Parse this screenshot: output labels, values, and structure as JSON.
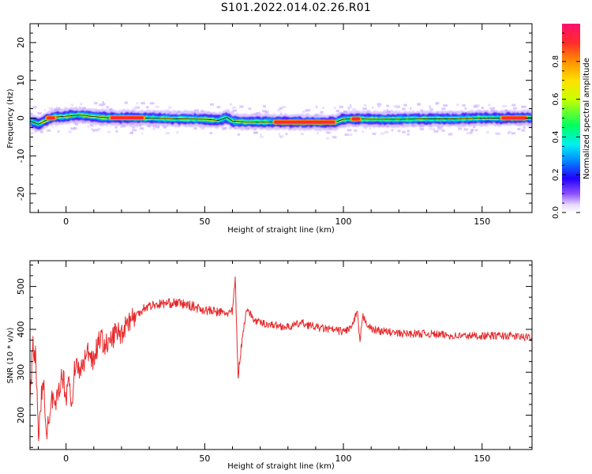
{
  "title": "S101.2022.014.02.26.R01",
  "chart_data": [
    {
      "type": "heatmap",
      "panel": "spectrogram",
      "xlabel": "Height of straight line (km)",
      "ylabel": "Frequency (Hz)",
      "xlim": [
        -13,
        168
      ],
      "ylim": [
        -25,
        25
      ],
      "xticks": [
        0,
        50,
        100,
        150
      ],
      "yticks": [
        -20,
        -10,
        0,
        10,
        20
      ],
      "grid": false,
      "colorbar": {
        "label": "Normalized spectral amplitude",
        "range": [
          0,
          1
        ],
        "ticks": [
          0.0,
          0.2,
          0.4,
          0.6,
          0.8
        ],
        "colormap": [
          "#ffffff",
          "#e8d9ff",
          "#8c50ff",
          "#2200ff",
          "#0090ff",
          "#00f0f0",
          "#00ff60",
          "#c8ff00",
          "#ffe000",
          "#ff9000",
          "#ff2a2a",
          "#ff1070"
        ]
      },
      "ridge_frequency": {
        "x": [
          -13,
          -10,
          -5,
          0,
          5,
          10,
          15,
          20,
          30,
          40,
          50,
          55,
          58,
          60,
          65,
          70,
          80,
          90,
          97,
          100,
          105,
          110,
          120,
          130,
          140,
          150,
          160,
          168
        ],
        "y": [
          -0.8,
          -1.6,
          0.2,
          0.5,
          0.8,
          0.4,
          0.1,
          0.1,
          0.0,
          -0.2,
          -0.3,
          -0.6,
          0.2,
          -0.8,
          -1.0,
          -1.0,
          -1.0,
          -1.1,
          -1.1,
          -0.3,
          -0.2,
          -0.3,
          -0.3,
          -0.2,
          -0.2,
          0.0,
          0.0,
          0.1
        ]
      },
      "peak_amplitude_segments": [
        {
          "x": [
            -7,
            -4
          ],
          "value": 0.95
        },
        {
          "x": [
            16,
            28
          ],
          "value": 1.0
        },
        {
          "x": [
            75,
            97
          ],
          "value": 1.0
        },
        {
          "x": [
            103,
            106
          ],
          "value": 0.9
        },
        {
          "x": [
            157,
            166
          ],
          "value": 0.95
        }
      ]
    },
    {
      "type": "line",
      "panel": "snr",
      "xlabel": "Height of straight line (km)",
      "ylabel": "SNR (10 * v/v)",
      "xlim": [
        -13,
        168
      ],
      "ylim": [
        120,
        560
      ],
      "xticks": [
        0,
        50,
        100,
        150
      ],
      "yticks": [
        200,
        300,
        400,
        500
      ],
      "grid": false,
      "color": "#e8282a",
      "series": [
        {
          "x": [
            -13,
            -12,
            -11,
            -10,
            -9,
            -8,
            -7,
            -6,
            -5,
            -4,
            -3,
            -2,
            -1,
            0,
            1,
            2,
            3,
            5,
            8,
            10,
            12,
            15,
            18,
            20,
            22,
            25,
            28,
            30,
            35,
            40,
            45,
            50,
            55,
            58,
            60,
            61,
            62,
            63,
            65,
            68,
            70,
            75,
            80,
            85,
            90,
            95,
            100,
            103,
            105,
            106,
            107,
            110,
            115,
            120,
            130,
            140,
            150,
            160,
            168
          ],
          "y": [
            230,
            360,
            340,
            150,
            240,
            260,
            170,
            175,
            240,
            205,
            250,
            280,
            290,
            240,
            300,
            205,
            320,
            300,
            350,
            330,
            380,
            360,
            395,
            390,
            420,
            430,
            450,
            455,
            460,
            462,
            455,
            445,
            440,
            438,
            440,
            520,
            290,
            350,
            450,
            420,
            415,
            410,
            405,
            415,
            405,
            400,
            395,
            405,
            440,
            370,
            430,
            400,
            395,
            390,
            390,
            385,
            385,
            385,
            380
          ]
        }
      ]
    }
  ]
}
